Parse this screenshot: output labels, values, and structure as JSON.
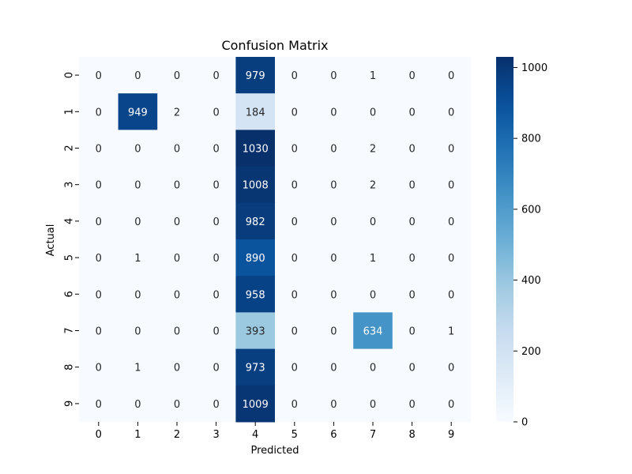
{
  "chart_data": {
    "type": "heatmap",
    "title": "Confusion Matrix",
    "xlabel": "Predicted",
    "ylabel": "Actual",
    "x_categories": [
      "0",
      "1",
      "2",
      "3",
      "4",
      "5",
      "6",
      "7",
      "8",
      "9"
    ],
    "y_categories": [
      "0",
      "1",
      "2",
      "3",
      "4",
      "5",
      "6",
      "7",
      "8",
      "9"
    ],
    "values": [
      [
        0,
        0,
        0,
        0,
        979,
        0,
        0,
        1,
        0,
        0
      ],
      [
        0,
        949,
        2,
        0,
        184,
        0,
        0,
        0,
        0,
        0
      ],
      [
        0,
        0,
        0,
        0,
        1030,
        0,
        0,
        2,
        0,
        0
      ],
      [
        0,
        0,
        0,
        0,
        1008,
        0,
        0,
        2,
        0,
        0
      ],
      [
        0,
        0,
        0,
        0,
        982,
        0,
        0,
        0,
        0,
        0
      ],
      [
        0,
        1,
        0,
        0,
        890,
        0,
        0,
        1,
        0,
        0
      ],
      [
        0,
        0,
        0,
        0,
        958,
        0,
        0,
        0,
        0,
        0
      ],
      [
        0,
        0,
        0,
        0,
        393,
        0,
        0,
        634,
        0,
        1
      ],
      [
        0,
        1,
        0,
        0,
        973,
        0,
        0,
        0,
        0,
        0
      ],
      [
        0,
        0,
        0,
        0,
        1009,
        0,
        0,
        0,
        0,
        0
      ]
    ],
    "colormap": "Blues",
    "vmin": 0,
    "vmax": 1030,
    "colorbar_ticks": [
      0,
      200,
      400,
      600,
      800,
      1000
    ],
    "annotated": true,
    "grid": false
  }
}
